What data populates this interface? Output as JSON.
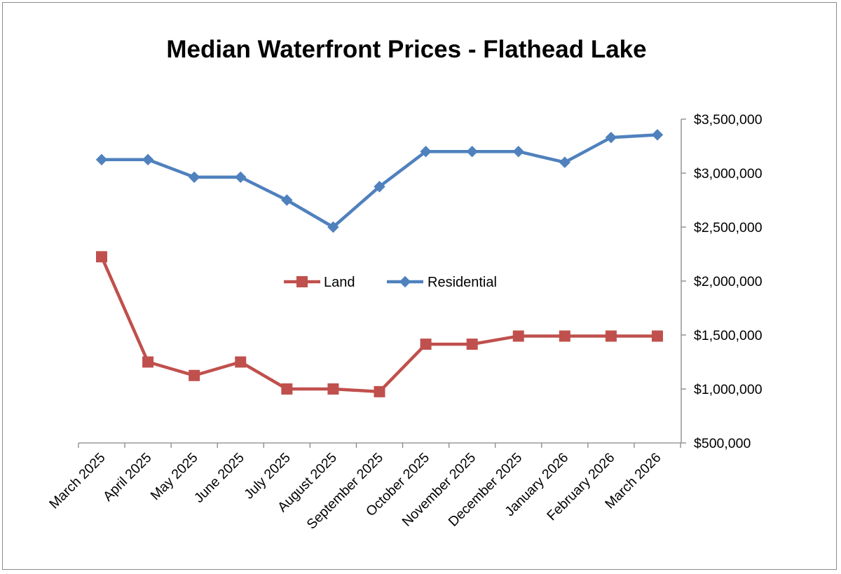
{
  "chart_data": {
    "type": "line",
    "title": "Median Waterfront Prices - Flathead Lake",
    "xlabel": "",
    "ylabel": "",
    "categories": [
      "March 2025",
      "April 2025",
      "May 2025",
      "June 2025",
      "July 2025",
      "August 2025",
      "September 2025",
      "October 2025",
      "November 2025",
      "December 2025",
      "January 2026",
      "February 2026",
      "March 2026"
    ],
    "series": [
      {
        "name": "Land",
        "color": "#C0504D",
        "marker": "square",
        "values": [
          2225000,
          1250000,
          1125000,
          1250000,
          1000000,
          1000000,
          975000,
          1415000,
          1415000,
          1490000,
          1490000,
          1490000,
          1490000
        ]
      },
      {
        "name": "Residential",
        "color": "#4F81BD",
        "marker": "diamond",
        "values": [
          3125000,
          3125000,
          2962500,
          2962500,
          2750000,
          2500000,
          2875000,
          3200000,
          3200000,
          3200000,
          3100000,
          3330000,
          3355000
        ]
      }
    ],
    "ylim": [
      500000,
      3500000
    ],
    "yticks": [
      500000,
      1000000,
      1500000,
      2000000,
      2500000,
      3000000,
      3500000
    ],
    "ytick_labels": [
      "$500,000",
      "$1,000,000",
      "$1,500,000",
      "$2,000,000",
      "$2,500,000",
      "$3,000,000",
      "$3,500,000"
    ],
    "y_axis_side": "right",
    "grid": false,
    "legend_position": "center"
  }
}
